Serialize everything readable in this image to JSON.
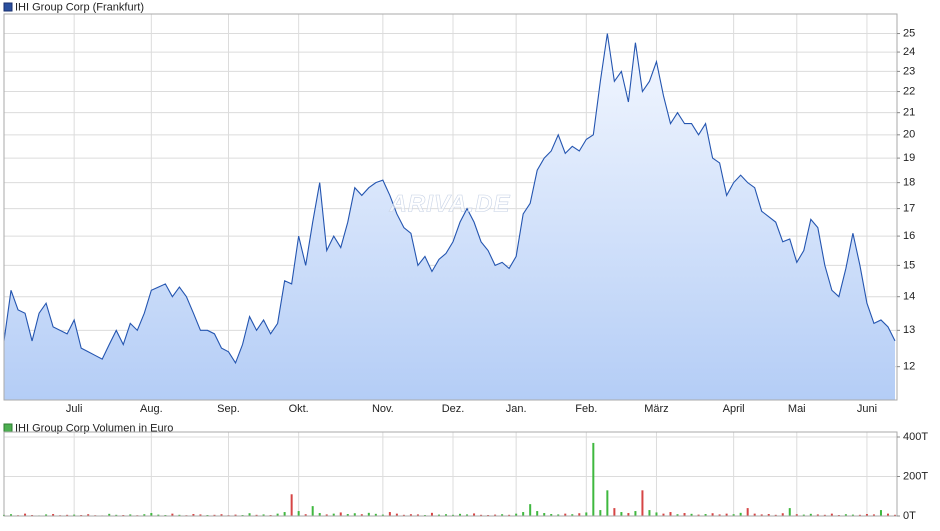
{
  "chart_data": [
    {
      "type": "area",
      "title": "IHI Group Corp (Frankfurt)",
      "watermark": "ARIVA.DE",
      "color": "#2455b0",
      "log_scale": true,
      "grid": true,
      "ylim": [
        11.15,
        26.1
      ],
      "yticks": [
        12,
        13,
        14,
        15,
        16,
        17,
        18,
        19,
        20,
        21,
        22,
        23,
        24,
        25
      ],
      "categories": [
        null,
        null,
        null,
        null,
        null,
        null,
        null,
        null,
        null,
        null,
        "Juli",
        null,
        null,
        null,
        null,
        null,
        null,
        null,
        null,
        null,
        null,
        "Aug.",
        null,
        null,
        null,
        null,
        null,
        null,
        null,
        null,
        null,
        null,
        "Sep.",
        null,
        null,
        null,
        null,
        null,
        null,
        null,
        null,
        null,
        "Okt.",
        null,
        null,
        null,
        null,
        null,
        null,
        null,
        null,
        null,
        null,
        null,
        "Nov.",
        null,
        null,
        null,
        null,
        null,
        null,
        null,
        null,
        null,
        "Dez.",
        null,
        null,
        null,
        null,
        null,
        null,
        null,
        null,
        "Jan.",
        null,
        null,
        null,
        null,
        null,
        null,
        null,
        null,
        null,
        "Feb.",
        null,
        null,
        null,
        null,
        null,
        null,
        null,
        null,
        null,
        "März",
        null,
        null,
        null,
        null,
        null,
        null,
        null,
        null,
        null,
        null,
        "April",
        null,
        null,
        null,
        null,
        null,
        null,
        null,
        null,
        "Mai",
        null,
        null,
        null,
        null,
        null,
        null,
        null,
        null,
        null,
        "Juni",
        null,
        null,
        null,
        null
      ],
      "values": [
        12.7,
        14.2,
        13.6,
        13.5,
        12.7,
        13.5,
        13.8,
        13.1,
        13.0,
        12.9,
        13.3,
        12.5,
        12.4,
        12.3,
        12.2,
        12.6,
        13.0,
        12.6,
        13.2,
        13.0,
        13.5,
        14.2,
        14.3,
        14.4,
        14.0,
        14.3,
        14.0,
        13.5,
        13.0,
        13.0,
        12.9,
        12.5,
        12.4,
        12.1,
        12.6,
        13.4,
        13.0,
        13.3,
        12.9,
        13.2,
        14.5,
        14.4,
        16.0,
        15.0,
        16.5,
        18.0,
        15.5,
        16.0,
        15.6,
        16.5,
        17.8,
        17.5,
        17.8,
        18.0,
        18.1,
        17.5,
        16.8,
        16.3,
        16.1,
        15.0,
        15.3,
        14.8,
        15.2,
        15.4,
        15.8,
        16.5,
        17.0,
        16.5,
        15.8,
        15.5,
        15.0,
        15.1,
        14.9,
        15.3,
        16.8,
        17.2,
        18.5,
        19.0,
        19.3,
        20.0,
        19.2,
        19.5,
        19.3,
        19.8,
        20.0,
        22.5,
        25.0,
        22.5,
        23.0,
        21.5,
        24.5,
        22.0,
        22.5,
        23.5,
        21.8,
        20.5,
        21.0,
        20.5,
        20.5,
        20.0,
        20.5,
        19.0,
        18.8,
        17.5,
        18.0,
        18.3,
        18.0,
        17.8,
        16.9,
        16.7,
        16.5,
        15.8,
        15.9,
        15.1,
        15.5,
        16.6,
        16.3,
        15.0,
        14.2,
        14.0,
        14.9,
        16.1,
        15.0,
        13.8,
        13.2,
        13.3,
        13.1,
        12.7
      ]
    },
    {
      "type": "bar",
      "title": "IHI Group Corp Volumen in Euro",
      "color": "#4caf50",
      "up_color": "#3fb83f",
      "down_color": "#d64545",
      "grid": true,
      "ylim": [
        0,
        400000
      ],
      "yticks": [
        {
          "value": 0,
          "label": "0T"
        },
        {
          "value": 200000,
          "label": "200T"
        },
        {
          "value": 400000,
          "label": "400T"
        }
      ],
      "values": [
        6000,
        9000,
        4000,
        12000,
        5000,
        3000,
        8000,
        10000,
        4000,
        6000,
        7000,
        5000,
        9000,
        4000,
        3000,
        11000,
        6000,
        5000,
        8000,
        4000,
        9000,
        15000,
        7000,
        5000,
        12000,
        6000,
        4000,
        10000,
        8000,
        5000,
        6000,
        9000,
        4000,
        7000,
        5000,
        14000,
        6000,
        8000,
        5000,
        12000,
        20000,
        110000,
        25000,
        9000,
        50000,
        15000,
        8000,
        12000,
        18000,
        10000,
        14000,
        9000,
        16000,
        11000,
        7000,
        20000,
        12000,
        6000,
        9000,
        8000,
        5000,
        16000,
        7000,
        9000,
        6000,
        11000,
        8000,
        13000,
        6000,
        5000,
        7000,
        9000,
        6000,
        12000,
        20000,
        60000,
        25000,
        15000,
        10000,
        8000,
        12000,
        9000,
        14000,
        18000,
        370000,
        30000,
        130000,
        40000,
        20000,
        15000,
        25000,
        130000,
        30000,
        18000,
        12000,
        20000,
        9000,
        15000,
        11000,
        7000,
        10000,
        14000,
        8000,
        12000,
        9000,
        16000,
        40000,
        12000,
        8000,
        10000,
        6000,
        14000,
        40000,
        9000,
        7000,
        11000,
        8000,
        6000,
        12000,
        5000,
        9000,
        7000,
        6000,
        10000,
        8000,
        30000,
        12000,
        6000
      ]
    }
  ]
}
